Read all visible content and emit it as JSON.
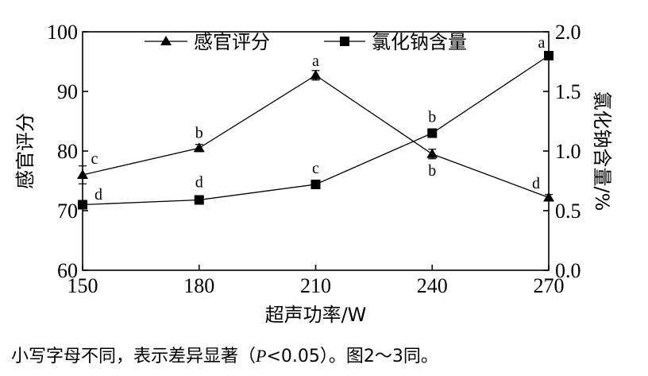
{
  "chart_data": {
    "type": "line",
    "xlabel": "超声功率/W",
    "ylabel_left": "感官评分",
    "ylabel_right": "氯化钠含量/%",
    "x": [
      150,
      180,
      210,
      240,
      270
    ],
    "x_ticks": [
      "150",
      "180",
      "210",
      "240",
      "270"
    ],
    "ylim_left": [
      60,
      100
    ],
    "yticks_left": [
      "60",
      "70",
      "80",
      "90",
      "100"
    ],
    "ylim_right": [
      0.0,
      2.0
    ],
    "yticks_right": [
      "0.0",
      "0.5",
      "1.0",
      "1.5",
      "2.0"
    ],
    "grid": false,
    "legend_position": "top",
    "series": [
      {
        "name": "感官评分",
        "axis": "left",
        "marker": "triangle",
        "values": [
          76.0,
          80.5,
          92.7,
          79.5,
          72.2
        ],
        "errors": [
          1.5,
          0.6,
          0.8,
          0.8,
          0.5
        ],
        "sig_labels": [
          "c",
          "b",
          "a",
          "b",
          "d"
        ]
      },
      {
        "name": "氯化钠含量",
        "axis": "right",
        "marker": "square",
        "values": [
          0.55,
          0.59,
          0.72,
          1.15,
          1.8
        ],
        "errors": [
          0.02,
          0.02,
          0.02,
          0.02,
          0.03
        ],
        "sig_labels": [
          "d",
          "d",
          "c",
          "b",
          "a"
        ]
      }
    ]
  },
  "caption": {
    "text_before": "小写字母不同，表示差异显著（",
    "p_symbol": "P",
    "text_after": "<0.05）。图2～3同。"
  }
}
